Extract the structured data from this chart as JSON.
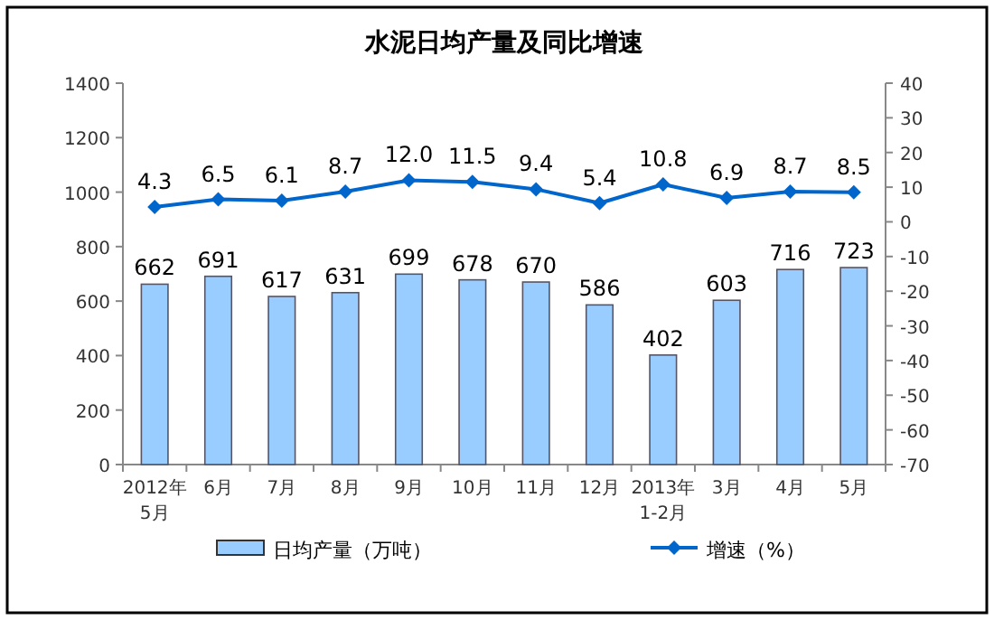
{
  "chart_data": {
    "type": "bar",
    "title": "水泥日均产量及同比增速",
    "categories": [
      "2012年\n5月",
      "6月",
      "7月",
      "8月",
      "9月",
      "10月",
      "11月",
      "12月",
      "2013年\n1-2月",
      "3月",
      "4月",
      "5月"
    ],
    "series": [
      {
        "name": "日均产量（万吨）",
        "color": "#99ccff",
        "values": [
          662,
          691,
          617,
          631,
          699,
          678,
          670,
          586,
          402,
          603,
          716,
          723
        ]
      },
      {
        "name": "增速（%）",
        "type": "line",
        "axis": "y2",
        "color": "#0066cc",
        "marker": "diamond",
        "values": [
          4.3,
          6.5,
          6.1,
          8.7,
          12.0,
          11.5,
          9.4,
          5.4,
          10.8,
          6.9,
          8.7,
          8.5
        ],
        "value_labels": [
          "4.3",
          "6.5",
          "6.1",
          "8.7",
          "12.0",
          "11.5",
          "9.4",
          "5.4",
          "10.8",
          "6.9",
          "8.7",
          "8.5"
        ]
      }
    ],
    "ylim": [
      0,
      1400
    ],
    "yticks": [
      0,
      200,
      400,
      600,
      800,
      1000,
      1200,
      1400
    ],
    "y2lim": [
      -70,
      40
    ],
    "y2ticks": [
      -70,
      -60,
      -50,
      -40,
      -30,
      -20,
      -10,
      0,
      10,
      20,
      30,
      40
    ],
    "data_labels": true,
    "grid": false,
    "legend": "bottom"
  }
}
